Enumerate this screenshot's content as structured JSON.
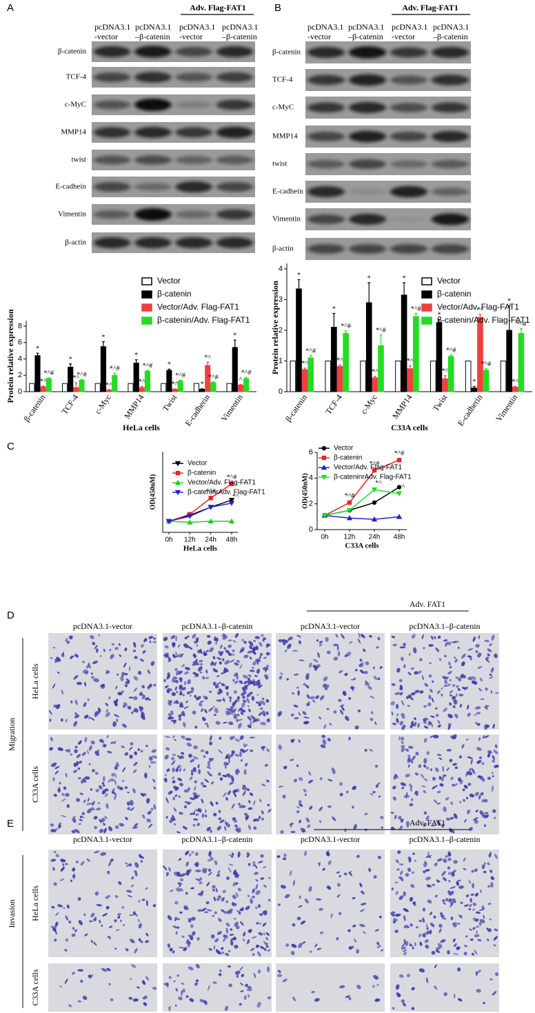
{
  "panel_labels": [
    "A",
    "B",
    "C",
    "D",
    "E"
  ],
  "blots": [
    {
      "group": "Adv. Flag-FAT1",
      "lanes": [
        [
          "pcDNA3.1",
          "-vector"
        ],
        [
          "pcDNA3.1",
          "–β-catenin"
        ],
        [
          "pcDNA3.1",
          "-vector"
        ],
        [
          "pcDNA3.1",
          "–β-catenin"
        ]
      ],
      "rows": [
        "β-catenin",
        "TCF-4",
        "c-MyC",
        "MMP14",
        "twist",
        "E-cadhein",
        "Vimentin",
        "β-actin"
      ]
    },
    {
      "group": "Adv. Flag-FAT1",
      "lanes": [
        [
          "pcDNA3.1",
          "-vector"
        ],
        [
          "pcDNA3.1",
          "–β-catenin"
        ],
        [
          "pcDNA3.1",
          "-vector"
        ],
        [
          "pcDNA3.1",
          "–β-catenin"
        ]
      ],
      "rows": [
        "β-catenin",
        "TCF-4",
        "c-MyC",
        "MMP14",
        "twist",
        "E-cadhein",
        "Vimentin",
        "β-actin"
      ]
    }
  ],
  "chart_data": [
    {
      "type": "bar",
      "y_label": "Protein relative expression",
      "x_label": "HeLa cells",
      "categories": [
        "β-catenin",
        "TCF-4",
        "c-Myc",
        "MMP14",
        "Twist",
        "E-cadherin",
        "Vimentin"
      ],
      "ylim": [
        0,
        8
      ],
      "yticks": [
        0,
        2,
        4,
        6,
        8
      ],
      "series": [
        {
          "name": "Vector",
          "color": "#ffffff",
          "values": [
            1,
            1,
            1,
            1,
            1,
            1,
            1
          ]
        },
        {
          "name": "β-catenin",
          "color": "#000000",
          "values": [
            4.4,
            3.0,
            5.5,
            3.5,
            2.6,
            0.3,
            5.4
          ],
          "errors": [
            0.3,
            0.4,
            0.6,
            0.4,
            0.15,
            0.05,
            0.9
          ],
          "annotations": [
            "*",
            "*",
            "*",
            "*",
            "*",
            "*",
            "*"
          ]
        },
        {
          "name": "Vector/Adv. Flag-FAT1",
          "color": "#f04040",
          "values": [
            0.6,
            0.5,
            0.2,
            0.5,
            0.3,
            3.2,
            0.8
          ],
          "errors": [
            0.1,
            0.6,
            0.05,
            0.15,
            0.05,
            0.4,
            0.1
          ],
          "annotations": [
            "*^",
            "*^",
            "*^",
            "*^",
            "*^",
            "*^",
            "^"
          ]
        },
        {
          "name": "β-catenin/Adv. Flag-FAT1",
          "color": "#22dd22",
          "values": [
            1.6,
            1.4,
            2.0,
            2.5,
            1.3,
            1.1,
            1.6
          ],
          "errors": [
            0.1,
            0.1,
            0.25,
            0.1,
            0.1,
            0.1,
            0.15
          ],
          "annotations": [
            "*^#",
            "*^#",
            "*^#",
            "*^#",
            "*^#",
            "*^#",
            "*^#"
          ]
        }
      ]
    },
    {
      "type": "bar",
      "y_label": "Protein relative expression",
      "x_label": "C33A cells",
      "categories": [
        "β-catenin",
        "TCF-4",
        "c-Myc",
        "MMP14",
        "Twist",
        "E-cadherin",
        "Vimentin"
      ],
      "ylim": [
        0,
        4
      ],
      "yticks": [
        0,
        1,
        2,
        3,
        4
      ],
      "series": [
        {
          "name": "Vector",
          "color": "#ffffff",
          "values": [
            1,
            1,
            1,
            1,
            1,
            1,
            1
          ]
        },
        {
          "name": "β-catenin",
          "color": "#000000",
          "values": [
            3.35,
            2.1,
            2.9,
            3.15,
            2.25,
            0.12,
            2.0
          ],
          "errors": [
            0.3,
            0.45,
            0.65,
            0.4,
            0.1,
            0.05,
            0.8
          ],
          "annotations": [
            "*",
            "*",
            "*",
            "*",
            "*",
            "*",
            "*"
          ]
        },
        {
          "name": "Vector/Adv. Flag-FAT1",
          "color": "#f04040",
          "values": [
            0.72,
            0.82,
            0.45,
            0.75,
            0.42,
            2.42,
            0.15
          ],
          "errors": [
            0.05,
            0.05,
            0.05,
            0.1,
            0.1,
            0.1,
            0.03
          ],
          "annotations": [
            "*^",
            "*^",
            "*^",
            "*^",
            "*^",
            "*^",
            "*^"
          ]
        },
        {
          "name": "β-catenin/Adv. Flag-FAT1",
          "color": "#22dd22",
          "values": [
            1.1,
            1.9,
            1.5,
            2.45,
            1.15,
            0.7,
            1.9
          ],
          "errors": [
            0.08,
            0.08,
            0.35,
            0.1,
            0.05,
            0.05,
            0.15
          ],
          "annotations": [
            "*^#",
            "*^#",
            "*^#",
            "*^#",
            "*^#",
            "*^#",
            "*^#"
          ]
        }
      ]
    },
    {
      "type": "line",
      "y_label": "OD(450nM)",
      "x_label": "HeLa cells",
      "categories": [
        "0h",
        "12h",
        "24h",
        "48h"
      ],
      "ylim": [
        0,
        8
      ],
      "yticks": [],
      "series": [
        {
          "name": "Vector",
          "color": "#000000",
          "marker": "tri-down",
          "values": [
            1.1,
            1.7,
            2.5,
            3.2
          ]
        },
        {
          "name": "β-catenin",
          "color": "#ee2222",
          "marker": "square",
          "values": [
            1.1,
            1.8,
            3.4,
            4.8
          ],
          "annotations": [
            null,
            null,
            "*^#",
            "*^#"
          ]
        },
        {
          "name": "Vector/Adv. Flag-FAT1",
          "color": "#22cc22",
          "marker": "tri-up",
          "values": [
            1.1,
            1.0,
            1.1,
            1.1
          ]
        },
        {
          "name": "β-cateninrAdv. Flag-FAT1",
          "color": "#2222cc",
          "marker": "tri-down",
          "values": [
            1.1,
            1.6,
            2.5,
            2.9
          ],
          "annotations": [
            null,
            null,
            null,
            "*^"
          ]
        }
      ]
    },
    {
      "type": "line",
      "y_label": "OD(450nM)",
      "x_label": "C33A cells",
      "categories": [
        "0h",
        "12h",
        "24h",
        "48h"
      ],
      "ylim": [
        0,
        6
      ],
      "yticks": [
        0,
        2,
        4,
        6
      ],
      "series": [
        {
          "name": "Vector",
          "color": "#000000",
          "marker": "circle",
          "values": [
            1.1,
            1.5,
            2.1,
            3.3
          ]
        },
        {
          "name": "β-catenin",
          "color": "#ee2222",
          "marker": "square",
          "values": [
            1.1,
            2.1,
            4.6,
            5.4
          ],
          "annotations": [
            null,
            "*^#",
            "*^#",
            "*^#"
          ]
        },
        {
          "name": "Vector/Adv. Flag-FAT1",
          "color": "#2222cc",
          "marker": "tri-up",
          "values": [
            1.1,
            0.9,
            0.8,
            1.0
          ]
        },
        {
          "name": "β-cateninrAdv. Flag-FAT1",
          "color": "#22dd22",
          "marker": "tri-down",
          "values": [
            1.1,
            1.5,
            3.1,
            2.8
          ],
          "annotations": [
            null,
            null,
            "*^",
            "^"
          ]
        }
      ]
    }
  ],
  "micrographs": [
    {
      "group": "Adv. FAT1",
      "columns": [
        "pcDNA3.1-vector",
        "pcDNA3.1–β-catenin",
        "pcDNA3.1-vector",
        "pcDNA3.1–β-catenin"
      ],
      "rows": [
        "HeLa cells",
        "C33A cells"
      ],
      "side_label": "Migration"
    },
    {
      "group": "Adv. FAT1",
      "columns": [
        "pcDNA3.1-vector",
        "pcDNA3.1–β-catenin",
        "pcDNA3.1-vector",
        "pcDNA3.1–β-catenin"
      ],
      "rows": [
        "HeLa cells",
        "C33A cells"
      ],
      "side_label": "Invasion"
    }
  ]
}
